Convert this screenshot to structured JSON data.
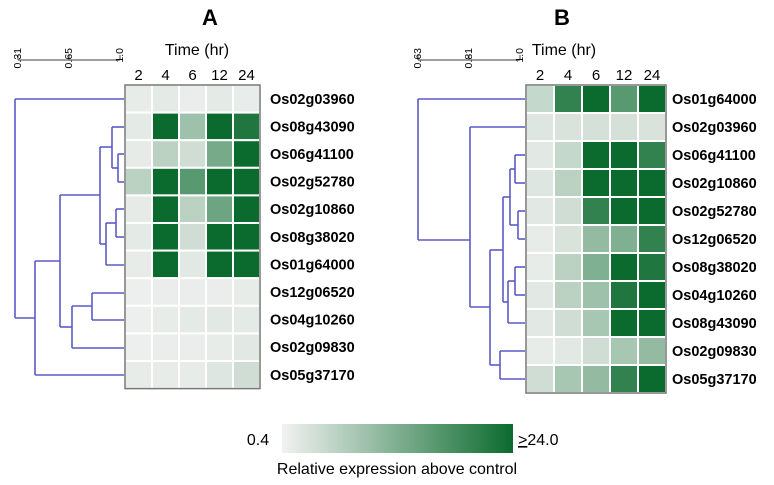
{
  "chart_data": [
    {
      "type": "heatmap",
      "panel": "A",
      "x_title": "Time (hr)",
      "columns": [
        "2",
        "4",
        "6",
        "12",
        "24"
      ],
      "rows": [
        "Os02g03960",
        "Os08g43090",
        "Os06g41100",
        "Os02g52780",
        "Os02g10860",
        "Os08g38020",
        "Os01g64000",
        "Os12g06520",
        "Os04g10260",
        "Os02g09830",
        "Os05g37170"
      ],
      "values": [
        [
          1.5,
          1.8,
          1.2,
          1.8,
          1.4
        ],
        [
          1.8,
          26.0,
          9.0,
          25.0,
          22.0
        ],
        [
          1.6,
          6.0,
          4.0,
          13.0,
          26.0
        ],
        [
          6.0,
          25.0,
          16.0,
          25.0,
          26.0
        ],
        [
          1.6,
          24.0,
          6.0,
          14.0,
          25.0
        ],
        [
          1.8,
          26.0,
          4.0,
          24.0,
          26.0
        ],
        [
          1.5,
          26.0,
          2.0,
          26.0,
          26.0
        ],
        [
          1.0,
          1.2,
          1.2,
          1.2,
          1.5
        ],
        [
          1.0,
          1.5,
          1.8,
          2.0,
          1.8
        ],
        [
          1.0,
          1.2,
          1.2,
          1.5,
          2.0
        ],
        [
          1.5,
          1.5,
          1.5,
          2.5,
          4.0
        ]
      ],
      "dendrogram_scale": [
        "0.31",
        "0.65",
        "1.0"
      ]
    },
    {
      "type": "heatmap",
      "panel": "B",
      "x_title": "Time (hr)",
      "columns": [
        "2",
        "4",
        "6",
        "12",
        "24"
      ],
      "rows": [
        "Os01g64000",
        "Os02g03960",
        "Os06g41100",
        "Os02g10860",
        "Os02g52780",
        "Os12g06520",
        "Os08g38020",
        "Os04g10260",
        "Os08g43090",
        "Os02g09830",
        "Os05g37170"
      ],
      "values": [
        [
          5.0,
          20.0,
          24.0,
          16.0,
          25.0
        ],
        [
          2.5,
          3.0,
          3.5,
          3.5,
          3.0
        ],
        [
          2.0,
          5.0,
          25.0,
          26.0,
          20.0
        ],
        [
          2.5,
          6.0,
          26.0,
          26.0,
          24.0
        ],
        [
          2.0,
          4.0,
          20.0,
          24.0,
          26.0
        ],
        [
          1.5,
          3.0,
          10.0,
          12.0,
          20.0
        ],
        [
          1.5,
          6.0,
          12.0,
          25.0,
          22.0
        ],
        [
          2.0,
          6.0,
          9.0,
          22.0,
          24.0
        ],
        [
          2.0,
          4.0,
          8.0,
          26.0,
          24.0
        ],
        [
          1.5,
          2.0,
          4.0,
          8.0,
          10.0
        ],
        [
          4.0,
          8.0,
          10.0,
          20.0,
          26.0
        ]
      ],
      "dendrogram_scale": [
        "0.63",
        "0.81",
        "1.0"
      ]
    }
  ],
  "legend": {
    "min_label": "0.4",
    "max_prefix": ">",
    "max_value": "24.0",
    "caption": "Relative expression above control",
    "low_color": "#f2f2f2",
    "high_color": "#0b6b2e",
    "min": 0.4,
    "max": 24.0
  },
  "colors": {
    "dendrogram": "#5b5bc8",
    "cell_border": "#ffffff",
    "frame": "#777777"
  }
}
